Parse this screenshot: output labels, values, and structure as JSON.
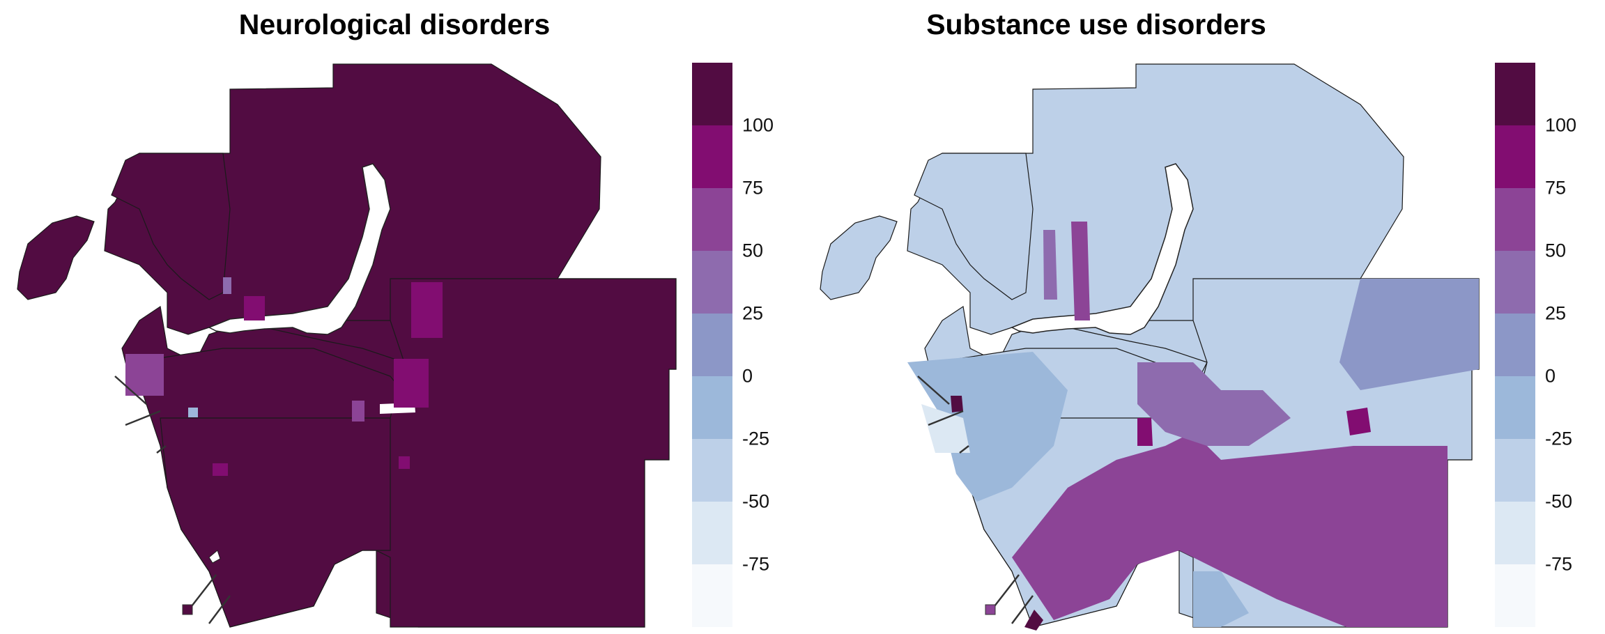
{
  "legend_levels": [
    {
      "label": "100",
      "color": "#520c42"
    },
    {
      "label": "75",
      "color": "#820d71"
    },
    {
      "label": "50",
      "color": "#8c4496"
    },
    {
      "label": "25",
      "color": "#8e6bae"
    },
    {
      "label": "0",
      "color": "#8c97c7"
    },
    {
      "label": "-25",
      "color": "#9cb8da"
    },
    {
      "label": "-50",
      "color": "#bdd0e8"
    },
    {
      "label": "-75",
      "color": "#dce8f3"
    },
    {
      "label": "",
      "color": "#f6f9fc"
    }
  ],
  "panels": [
    {
      "title": "Neurological disorders",
      "base_color": "#520c42",
      "patches": [
        {
          "color": "#820d71"
        },
        {
          "color": "#8c4496"
        },
        {
          "color": "#820d71"
        },
        {
          "color": "#8e6bae"
        },
        {
          "color": "#820d71"
        },
        {
          "color": "#9cb8da"
        },
        {
          "color": "#820d71"
        },
        {
          "color": "#8c4496"
        },
        {
          "color": "#820d71"
        }
      ]
    },
    {
      "title": "Substance use disorders",
      "base_color": "#bdd0e8",
      "patches": [
        {
          "color": "#9cb8da"
        },
        {
          "color": "#8c97c7"
        },
        {
          "color": "#8c4496"
        },
        {
          "color": "#8e6bae"
        },
        {
          "color": "#9cb8da"
        },
        {
          "color": "#820d71"
        },
        {
          "color": "#520c42"
        },
        {
          "color": "#dce8f3"
        },
        {
          "color": "#8c4496"
        },
        {
          "color": "#520c42"
        },
        {
          "color": "#820d71"
        },
        {
          "color": "#8e6bae"
        }
      ]
    }
  ]
}
